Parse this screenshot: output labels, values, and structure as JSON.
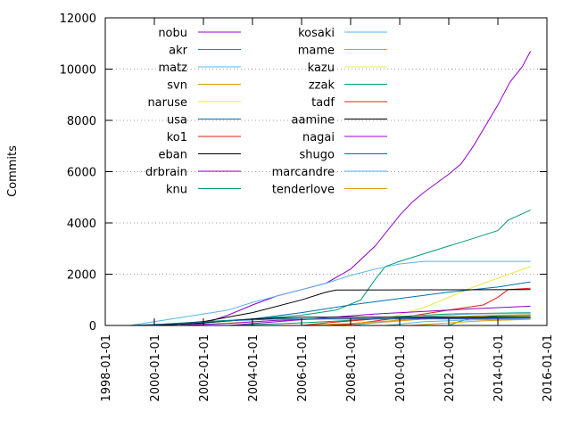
{
  "chart_data": {
    "type": "line",
    "title": "",
    "xlabel": "",
    "ylabel": "Commits",
    "xlim": [
      "1998-01-01",
      "2016-01-01"
    ],
    "ylim": [
      0,
      12000
    ],
    "x_ticks": [
      "1998-01-01",
      "2000-01-01",
      "2002-01-01",
      "2004-01-01",
      "2006-01-01",
      "2008-01-01",
      "2010-01-01",
      "2012-01-01",
      "2014-01-01",
      "2016-01-01"
    ],
    "y_ticks": [
      0,
      2000,
      4000,
      6000,
      8000,
      10000,
      12000
    ],
    "grid": "horizontal dotted",
    "legend": "top, two columns",
    "series": [
      {
        "name": "nobu",
        "color": "#9400d3",
        "points": [
          [
            "2001-01-01",
            0
          ],
          [
            "2002-01-01",
            80
          ],
          [
            "2003-01-01",
            400
          ],
          [
            "2004-01-01",
            800
          ],
          [
            "2005-01-01",
            1150
          ],
          [
            "2006-01-01",
            1400
          ],
          [
            "2007-01-01",
            1650
          ],
          [
            "2008-01-01",
            2200
          ],
          [
            "2009-01-01",
            3100
          ],
          [
            "2010-01-01",
            4300
          ],
          [
            "2010-07-01",
            4800
          ],
          [
            "2011-01-01",
            5200
          ],
          [
            "2012-01-01",
            5900
          ],
          [
            "2012-07-01",
            6300
          ],
          [
            "2013-01-01",
            7000
          ],
          [
            "2014-01-01",
            8600
          ],
          [
            "2014-07-01",
            9500
          ],
          [
            "2015-01-01",
            10100
          ],
          [
            "2015-05-01",
            10700
          ]
        ]
      },
      {
        "name": "akr",
        "color": "#009e73",
        "points": [
          [
            "1999-06-01",
            0
          ],
          [
            "2002-01-01",
            150
          ],
          [
            "2004-01-01",
            250
          ],
          [
            "2006-01-01",
            400
          ],
          [
            "2007-06-01",
            600
          ],
          [
            "2008-06-01",
            1000
          ],
          [
            "2009-01-01",
            1800
          ],
          [
            "2009-06-01",
            2300
          ],
          [
            "2010-01-01",
            2500
          ],
          [
            "2011-01-01",
            2800
          ],
          [
            "2012-01-01",
            3100
          ],
          [
            "2013-01-01",
            3400
          ],
          [
            "2014-01-01",
            3700
          ],
          [
            "2014-06-01",
            4100
          ],
          [
            "2015-05-01",
            4500
          ]
        ]
      },
      {
        "name": "matz",
        "color": "#56b4e9",
        "points": [
          [
            "1998-01-01",
            0
          ],
          [
            "1999-01-01",
            0
          ],
          [
            "2000-01-01",
            150
          ],
          [
            "2002-01-01",
            450
          ],
          [
            "2003-01-01",
            600
          ],
          [
            "2004-01-01",
            900
          ],
          [
            "2006-01-01",
            1400
          ],
          [
            "2007-01-01",
            1650
          ],
          [
            "2008-01-01",
            1950
          ],
          [
            "2009-01-01",
            2200
          ],
          [
            "2010-01-01",
            2400
          ],
          [
            "2011-01-01",
            2500
          ],
          [
            "2015-05-01",
            2500
          ]
        ]
      },
      {
        "name": "svn",
        "color": "#e69f00",
        "points": [
          [
            "2007-01-01",
            0
          ],
          [
            "2009-01-01",
            100
          ],
          [
            "2011-01-01",
            250
          ],
          [
            "2013-01-01",
            380
          ],
          [
            "2015-05-01",
            420
          ]
        ]
      },
      {
        "name": "naruse",
        "color": "#f0e442",
        "points": [
          [
            "2007-06-01",
            0
          ],
          [
            "2009-01-01",
            150
          ],
          [
            "2011-01-01",
            700
          ],
          [
            "2013-01-01",
            1500
          ],
          [
            "2015-05-01",
            2300
          ]
        ]
      },
      {
        "name": "usa",
        "color": "#0072b2",
        "points": [
          [
            "2000-01-01",
            0
          ],
          [
            "2002-01-01",
            100
          ],
          [
            "2004-01-01",
            250
          ],
          [
            "2006-01-01",
            500
          ],
          [
            "2008-01-01",
            800
          ],
          [
            "2010-01-01",
            1050
          ],
          [
            "2012-01-01",
            1300
          ],
          [
            "2014-01-01",
            1500
          ],
          [
            "2015-05-01",
            1700
          ]
        ]
      },
      {
        "name": "ko1",
        "color": "#e51e10",
        "points": [
          [
            "2007-01-01",
            0
          ],
          [
            "2008-01-01",
            50
          ],
          [
            "2010-01-01",
            300
          ],
          [
            "2012-01-01",
            600
          ],
          [
            "2013-06-01",
            800
          ],
          [
            "2014-01-01",
            1100
          ],
          [
            "2014-06-01",
            1400
          ],
          [
            "2015-05-01",
            1450
          ]
        ]
      },
      {
        "name": "eban",
        "color": "#000000",
        "points": [
          [
            "2000-01-01",
            0
          ],
          [
            "2002-01-01",
            150
          ],
          [
            "2004-01-01",
            500
          ],
          [
            "2006-01-01",
            1000
          ],
          [
            "2007-01-01",
            1300
          ],
          [
            "2007-06-01",
            1380
          ],
          [
            "2015-05-01",
            1400
          ]
        ]
      },
      {
        "name": "drbrain",
        "color": "#9400d3",
        "points": [
          [
            "2003-01-01",
            0
          ],
          [
            "2005-01-01",
            150
          ],
          [
            "2007-01-01",
            300
          ],
          [
            "2009-01-01",
            450
          ],
          [
            "2011-01-01",
            550
          ],
          [
            "2013-01-01",
            650
          ],
          [
            "2015-05-01",
            750
          ]
        ]
      },
      {
        "name": "knu",
        "color": "#009e73",
        "points": [
          [
            "2003-01-01",
            0
          ],
          [
            "2006-01-01",
            100
          ],
          [
            "2008-01-01",
            200
          ],
          [
            "2010-01-01",
            350
          ],
          [
            "2012-01-01",
            450
          ],
          [
            "2015-05-01",
            500
          ]
        ]
      },
      {
        "name": "kosaki",
        "color": "#56b4e9",
        "points": [
          [
            "2008-01-01",
            0
          ],
          [
            "2009-06-01",
            150
          ],
          [
            "2011-01-01",
            350
          ],
          [
            "2013-01-01",
            450
          ],
          [
            "2015-05-01",
            480
          ]
        ]
      },
      {
        "name": "mame",
        "color": "#e69f00",
        "points": [
          [
            "2006-01-01",
            0
          ],
          [
            "2008-01-01",
            80
          ],
          [
            "2010-01-01",
            200
          ],
          [
            "2012-01-01",
            300
          ],
          [
            "2015-05-01",
            420
          ]
        ]
      },
      {
        "name": "kazu",
        "color": "#f0e442",
        "points": [
          [
            "2001-01-01",
            0
          ],
          [
            "2003-01-01",
            100
          ],
          [
            "2005-01-01",
            200
          ],
          [
            "2008-01-01",
            300
          ],
          [
            "2012-01-01",
            340
          ],
          [
            "2015-05-01",
            360
          ]
        ]
      },
      {
        "name": "zzak",
        "color": "#009e73",
        "points": [
          [
            "2012-01-01",
            0
          ],
          [
            "2012-06-01",
            150
          ],
          [
            "2013-01-01",
            300
          ],
          [
            "2014-01-01",
            380
          ],
          [
            "2015-05-01",
            400
          ]
        ]
      },
      {
        "name": "tadf",
        "color": "#e51e10",
        "points": [
          [
            "2006-01-01",
            0
          ],
          [
            "2007-01-01",
            100
          ],
          [
            "2009-01-01",
            250
          ],
          [
            "2011-01-01",
            300
          ],
          [
            "2015-05-01",
            330
          ]
        ]
      },
      {
        "name": "aamine",
        "color": "#000000",
        "points": [
          [
            "2000-01-01",
            0
          ],
          [
            "2002-01-01",
            100
          ],
          [
            "2004-01-01",
            250
          ],
          [
            "2006-01-01",
            320
          ],
          [
            "2015-05-01",
            330
          ]
        ]
      },
      {
        "name": "nagai",
        "color": "#9400d3",
        "points": [
          [
            "2001-01-01",
            0
          ],
          [
            "2003-01-01",
            80
          ],
          [
            "2005-01-01",
            200
          ],
          [
            "2007-01-01",
            260
          ],
          [
            "2015-05-01",
            280
          ]
        ]
      },
      {
        "name": "shugo",
        "color": "#0072b2",
        "points": [
          [
            "1999-01-01",
            0
          ],
          [
            "2001-01-01",
            80
          ],
          [
            "2003-01-01",
            180
          ],
          [
            "2005-01-01",
            250
          ],
          [
            "2015-05-01",
            260
          ]
        ]
      },
      {
        "name": "marcandre",
        "color": "#56b4e9",
        "points": [
          [
            "2009-06-01",
            0
          ],
          [
            "2011-01-01",
            150
          ],
          [
            "2013-01-01",
            220
          ],
          [
            "2015-05-01",
            250
          ]
        ]
      },
      {
        "name": "tenderlove",
        "color": "#e69f00",
        "points": [
          [
            "2010-06-01",
            0
          ],
          [
            "2012-01-01",
            100
          ],
          [
            "2013-06-01",
            180
          ],
          [
            "2015-05-01",
            240
          ]
        ]
      }
    ]
  }
}
